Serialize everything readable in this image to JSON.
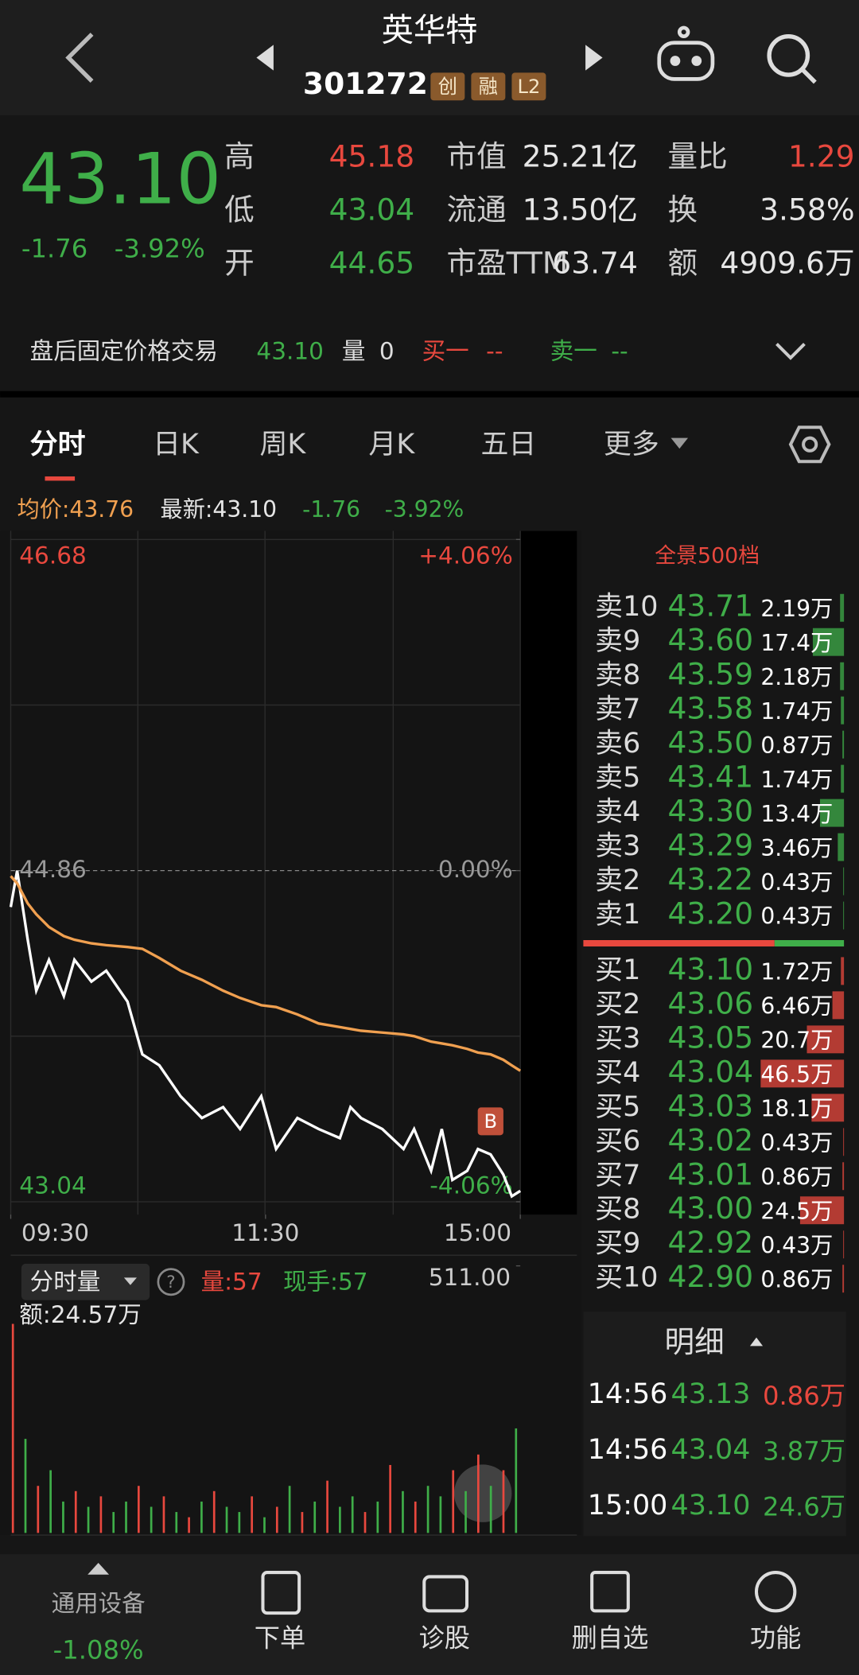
{
  "header": {
    "title": "英华特",
    "code": "301272",
    "badges": [
      "创",
      "融",
      "L2"
    ]
  },
  "quote": {
    "price": "43.10",
    "change": "-1.76",
    "change_pct": "-3.92%",
    "col1": [
      {
        "label": "高",
        "value": "45.18",
        "color": "#e8483e"
      },
      {
        "label": "低",
        "value": "43.04",
        "color": "#3fae49"
      },
      {
        "label": "开",
        "value": "44.65",
        "color": "#3fae49"
      }
    ],
    "col2": [
      {
        "label": "市值",
        "value": "25.21亿"
      },
      {
        "label": "流通",
        "value": "13.50亿"
      },
      {
        "label": "市盈TTM",
        "value": "63.74"
      }
    ],
    "col3": [
      {
        "label": "量比",
        "value": "1.29",
        "color": "#e8483e"
      },
      {
        "label": "换",
        "value": "3.58%",
        "color": "#e6e6e6"
      },
      {
        "label": "额",
        "value": "4909.6万",
        "color": "#e6e6e6"
      }
    ]
  },
  "after_hours": {
    "label": "盘后固定价格交易",
    "price": "43.10",
    "volume_label": "量",
    "volume": "0",
    "bid": "买一",
    "bid_value": "--",
    "ask": "卖一",
    "ask_value": "--"
  },
  "tabs": [
    "分时",
    "日K",
    "周K",
    "月K",
    "五日",
    "更多"
  ],
  "chart_data": {
    "type": "line",
    "legend": {
      "avg": "均价:43.76",
      "last": "最新:43.10",
      "change": "-1.76",
      "pct": "-3.92%"
    },
    "x": [
      0,
      3,
      8,
      12,
      18,
      25,
      30,
      38,
      45,
      55,
      62,
      70,
      80,
      90,
      100,
      108,
      118,
      125,
      135,
      145,
      155,
      160,
      165,
      175,
      185,
      190,
      198,
      203,
      208,
      215,
      220,
      226,
      232,
      236,
      240
    ],
    "series": [
      {
        "color": "#ffffff",
        "values": [
          44.66,
          44.86,
          44.48,
          44.2,
          44.37,
          44.17,
          44.37,
          44.25,
          44.31,
          44.14,
          43.85,
          43.79,
          43.62,
          43.5,
          43.56,
          43.44,
          43.62,
          43.33,
          43.5,
          43.44,
          43.39,
          43.56,
          43.5,
          43.44,
          43.33,
          43.44,
          43.21,
          43.44,
          43.16,
          43.21,
          43.33,
          43.3,
          43.19,
          43.07,
          43.1
        ]
      },
      {
        "color": "#f0a050",
        "values": [
          44.83,
          44.79,
          44.68,
          44.62,
          44.55,
          44.5,
          44.48,
          44.46,
          44.45,
          44.44,
          44.43,
          44.38,
          44.31,
          44.26,
          44.2,
          44.16,
          44.12,
          44.11,
          44.07,
          44.02,
          44.0,
          43.99,
          43.98,
          43.97,
          43.96,
          43.95,
          43.92,
          43.91,
          43.9,
          43.88,
          43.86,
          43.85,
          43.82,
          43.79,
          43.76
        ]
      }
    ],
    "xlim": [
      0,
      240
    ],
    "xticks": [
      {
        "value": 0,
        "label": "09:30"
      },
      {
        "value": 120,
        "label": "11:30"
      },
      {
        "value": 240,
        "label": "15:00"
      }
    ],
    "ylim": [
      43.04,
      46.68
    ],
    "yticks": [
      43.04,
      44.86,
      46.68
    ],
    "y2lim": [
      -4.06,
      4.06
    ],
    "y2ticks": [
      {
        "value": -4.06,
        "label": "-4.06%"
      },
      {
        "value": 0,
        "label": "0.00%"
      },
      {
        "value": 4.06,
        "label": "+4.06%"
      }
    ],
    "marker": {
      "x": 226,
      "y": 43.3,
      "label": "B"
    },
    "volume": {
      "title": "分时量",
      "vol": "量:57",
      "hand": "现手:57",
      "amount": "额:24.57万",
      "ylim": [
        0,
        511
      ],
      "yticks": [
        {
          "value": 511,
          "label": "511.00"
        }
      ],
      "values": [
        400,
        180,
        90,
        120,
        60,
        80,
        50,
        70,
        40,
        60,
        90,
        50,
        70,
        40,
        30,
        60,
        80,
        50,
        40,
        70,
        30,
        50,
        90,
        40,
        60,
        100,
        50,
        70,
        40,
        60,
        130,
        80,
        60,
        90,
        70,
        120,
        80,
        150,
        90,
        120,
        200
      ],
      "colors": [
        "#e8483e",
        "#3fae49",
        "#e8483e",
        "#3fae49",
        "#3fae49",
        "#e8483e",
        "#3fae49",
        "#e8483e",
        "#3fae49",
        "#3fae49",
        "#e8483e",
        "#3fae49",
        "#e8483e",
        "#3fae49",
        "#e8483e",
        "#3fae49",
        "#e8483e",
        "#3fae49",
        "#3fae49",
        "#e8483e",
        "#3fae49",
        "#e8483e",
        "#3fae49",
        "#e8483e",
        "#3fae49",
        "#e8483e",
        "#3fae49",
        "#3fae49",
        "#e8483e",
        "#3fae49",
        "#e8483e",
        "#3fae49",
        "#e8483e",
        "#3fae49",
        "#3fae49",
        "#e8483e",
        "#3fae49",
        "#e8483e",
        "#3fae49",
        "#e8483e",
        "#3fae49"
      ]
    }
  },
  "order_book": {
    "title": "全景500档",
    "asks": [
      {
        "label": "卖10",
        "price": "43.71",
        "volume": 2.19,
        "volume_label": "2.19万"
      },
      {
        "label": "卖9",
        "price": "43.60",
        "volume": 17.4,
        "volume_label": "17.4万"
      },
      {
        "label": "卖8",
        "price": "43.59",
        "volume": 2.18,
        "volume_label": "2.18万"
      },
      {
        "label": "卖7",
        "price": "43.58",
        "volume": 1.74,
        "volume_label": "1.74万"
      },
      {
        "label": "卖6",
        "price": "43.50",
        "volume": 0.87,
        "volume_label": "0.87万"
      },
      {
        "label": "卖5",
        "price": "43.41",
        "volume": 1.74,
        "volume_label": "1.74万"
      },
      {
        "label": "卖4",
        "price": "43.30",
        "volume": 13.4,
        "volume_label": "13.4万"
      },
      {
        "label": "卖3",
        "price": "43.29",
        "volume": 3.46,
        "volume_label": "3.46万"
      },
      {
        "label": "卖2",
        "price": "43.22",
        "volume": 0.43,
        "volume_label": "0.43万"
      },
      {
        "label": "卖1",
        "price": "43.20",
        "volume": 0.43,
        "volume_label": "0.43万"
      }
    ],
    "bids": [
      {
        "label": "买1",
        "price": "43.10",
        "volume": 1.72,
        "volume_label": "1.72万"
      },
      {
        "label": "买2",
        "price": "43.06",
        "volume": 6.46,
        "volume_label": "6.46万"
      },
      {
        "label": "买3",
        "price": "43.05",
        "volume": 20.7,
        "volume_label": "20.7万"
      },
      {
        "label": "买4",
        "price": "43.04",
        "volume": 46.5,
        "volume_label": "46.5万"
      },
      {
        "label": "买5",
        "price": "43.03",
        "volume": 18.1,
        "volume_label": "18.1万"
      },
      {
        "label": "买6",
        "price": "43.02",
        "volume": 0.43,
        "volume_label": "0.43万"
      },
      {
        "label": "买7",
        "price": "43.01",
        "volume": 0.86,
        "volume_label": "0.86万"
      },
      {
        "label": "买8",
        "price": "43.00",
        "volume": 24.5,
        "volume_label": "24.5万"
      },
      {
        "label": "买9",
        "price": "42.92",
        "volume": 0.43,
        "volume_label": "0.43万"
      },
      {
        "label": "买10",
        "price": "42.90",
        "volume": 0.86,
        "volume_label": "0.86万"
      }
    ]
  },
  "details": {
    "title": "明细",
    "rows": [
      [
        "14:56",
        "43.13",
        "0.86万"
      ],
      [
        "14:56",
        "43.04",
        "3.87万"
      ],
      [
        "15:00",
        "43.10",
        "24.6万"
      ]
    ],
    "vol_colors": [
      "#e8483e",
      "#3fae49",
      "#3fae49"
    ]
  },
  "nav": {
    "sector": "通用设备",
    "sector_change": "-1.08%",
    "items": [
      "下单",
      "诊股",
      "删自选",
      "功能"
    ]
  }
}
